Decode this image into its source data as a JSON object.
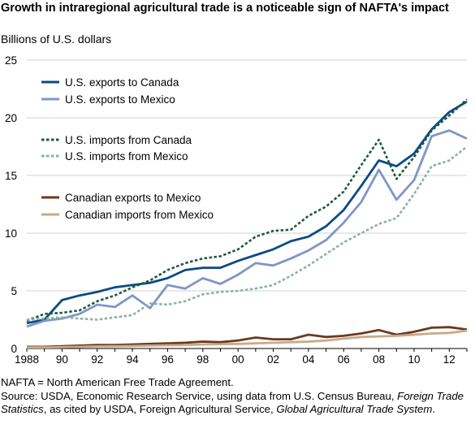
{
  "title": "Growth in intraregional agricultural trade is a noticeable sign of NAFTA's impact",
  "y_axis_unit": "Billions of U.S. dollars",
  "footnote": "NAFTA = North American Free Trade Agreement.",
  "source": {
    "prefix": "Source: USDA, Economic Research Service, using data from U.S. Census Bureau, ",
    "italic1": "Foreign Trade Statistics",
    "middle": ", as cited by USDA, Foreign Agricultural Service, ",
    "italic2": "Global Agricultural Trade System",
    "suffix": "."
  },
  "colors": {
    "us_exports_canada": "#0b4a87",
    "us_exports_mexico": "#7d97c6",
    "us_imports_canada": "#1d5a3c",
    "us_imports_mexico": "#8ab3a0",
    "canadian_exports_mexico": "#6b3a1f",
    "canadian_imports_mexico": "#c8a98a",
    "grid": "#d0d0d0"
  },
  "chart_data": {
    "type": "line",
    "x": [
      1988,
      1989,
      1990,
      1991,
      1992,
      1993,
      1994,
      1995,
      1996,
      1997,
      1998,
      1999,
      2000,
      2001,
      2002,
      2003,
      2004,
      2005,
      2006,
      2007,
      2008,
      2009,
      2010,
      2011,
      2012,
      2013
    ],
    "xlim": [
      1988,
      2013
    ],
    "ylim": [
      0,
      25
    ],
    "x_ticks": [
      1988,
      1990,
      1992,
      1994,
      1996,
      1998,
      2000,
      2002,
      2004,
      2006,
      2008,
      2010,
      2012
    ],
    "x_tick_labels": [
      "1988",
      "90",
      "92",
      "94",
      "96",
      "98",
      "00",
      "02",
      "04",
      "06",
      "08",
      "10",
      "12"
    ],
    "y_ticks": [
      0,
      5,
      10,
      15,
      20,
      25
    ],
    "y_tick_labels": [
      "0",
      "5",
      "10",
      "15",
      "20",
      "25"
    ],
    "grid": "horizontal",
    "legend_position": "top-left",
    "series": [
      {
        "name": "U.S. exports to Canada",
        "style": "solid",
        "weight": "heavy",
        "color_key": "us_exports_canada",
        "values": [
          2.2,
          2.5,
          4.2,
          4.6,
          4.9,
          5.3,
          5.5,
          5.7,
          6.1,
          6.8,
          7.0,
          7.0,
          7.6,
          8.1,
          8.6,
          9.3,
          9.7,
          10.6,
          12.0,
          14.1,
          16.3,
          15.8,
          16.9,
          19.0,
          20.5,
          21.4
        ]
      },
      {
        "name": "U.S. exports to Mexico",
        "style": "solid",
        "weight": "heavy",
        "color_key": "us_exports_mexico",
        "values": [
          1.9,
          2.4,
          2.6,
          3.0,
          3.8,
          3.6,
          4.6,
          3.5,
          5.5,
          5.2,
          6.1,
          5.6,
          6.4,
          7.4,
          7.2,
          7.8,
          8.5,
          9.4,
          10.9,
          12.7,
          15.5,
          12.9,
          14.6,
          18.4,
          18.9,
          18.2
        ]
      },
      {
        "name": "U.S. imports from Canada",
        "style": "dashed",
        "weight": "heavy",
        "color_key": "us_imports_canada",
        "values": [
          2.4,
          3.0,
          3.1,
          3.3,
          4.1,
          4.6,
          5.3,
          5.9,
          6.8,
          7.4,
          7.8,
          8.0,
          8.6,
          9.7,
          10.2,
          10.3,
          11.5,
          12.3,
          13.6,
          15.9,
          18.1,
          14.7,
          16.6,
          18.9,
          20.2,
          21.6
        ]
      },
      {
        "name": "U.S. imports from Mexico",
        "style": "dashed",
        "weight": "heavy",
        "color_key": "us_imports_mexico",
        "values": [
          2.5,
          2.6,
          2.7,
          2.6,
          2.5,
          2.7,
          2.9,
          3.9,
          3.8,
          4.1,
          4.7,
          4.9,
          5.0,
          5.2,
          5.5,
          6.3,
          7.2,
          8.2,
          9.2,
          10.0,
          10.8,
          11.3,
          13.4,
          15.8,
          16.3,
          17.5
        ]
      },
      {
        "name": "Canadian exports to Mexico",
        "style": "solid",
        "weight": "heavy",
        "color_key": "canadian_exports_mexico",
        "values": [
          0.15,
          0.15,
          0.2,
          0.25,
          0.3,
          0.3,
          0.35,
          0.4,
          0.45,
          0.5,
          0.6,
          0.55,
          0.7,
          0.95,
          0.8,
          0.8,
          1.2,
          1.0,
          1.1,
          1.3,
          1.6,
          1.2,
          1.45,
          1.8,
          1.85,
          1.65
        ]
      },
      {
        "name": "Canadian imports from Mexico",
        "style": "solid",
        "weight": "heavy",
        "color_key": "canadian_imports_mexico",
        "values": [
          0.1,
          0.1,
          0.12,
          0.15,
          0.18,
          0.2,
          0.22,
          0.25,
          0.28,
          0.3,
          0.35,
          0.38,
          0.4,
          0.45,
          0.5,
          0.55,
          0.6,
          0.7,
          0.85,
          1.0,
          1.05,
          1.1,
          1.2,
          1.3,
          1.35,
          1.55
        ]
      }
    ]
  }
}
